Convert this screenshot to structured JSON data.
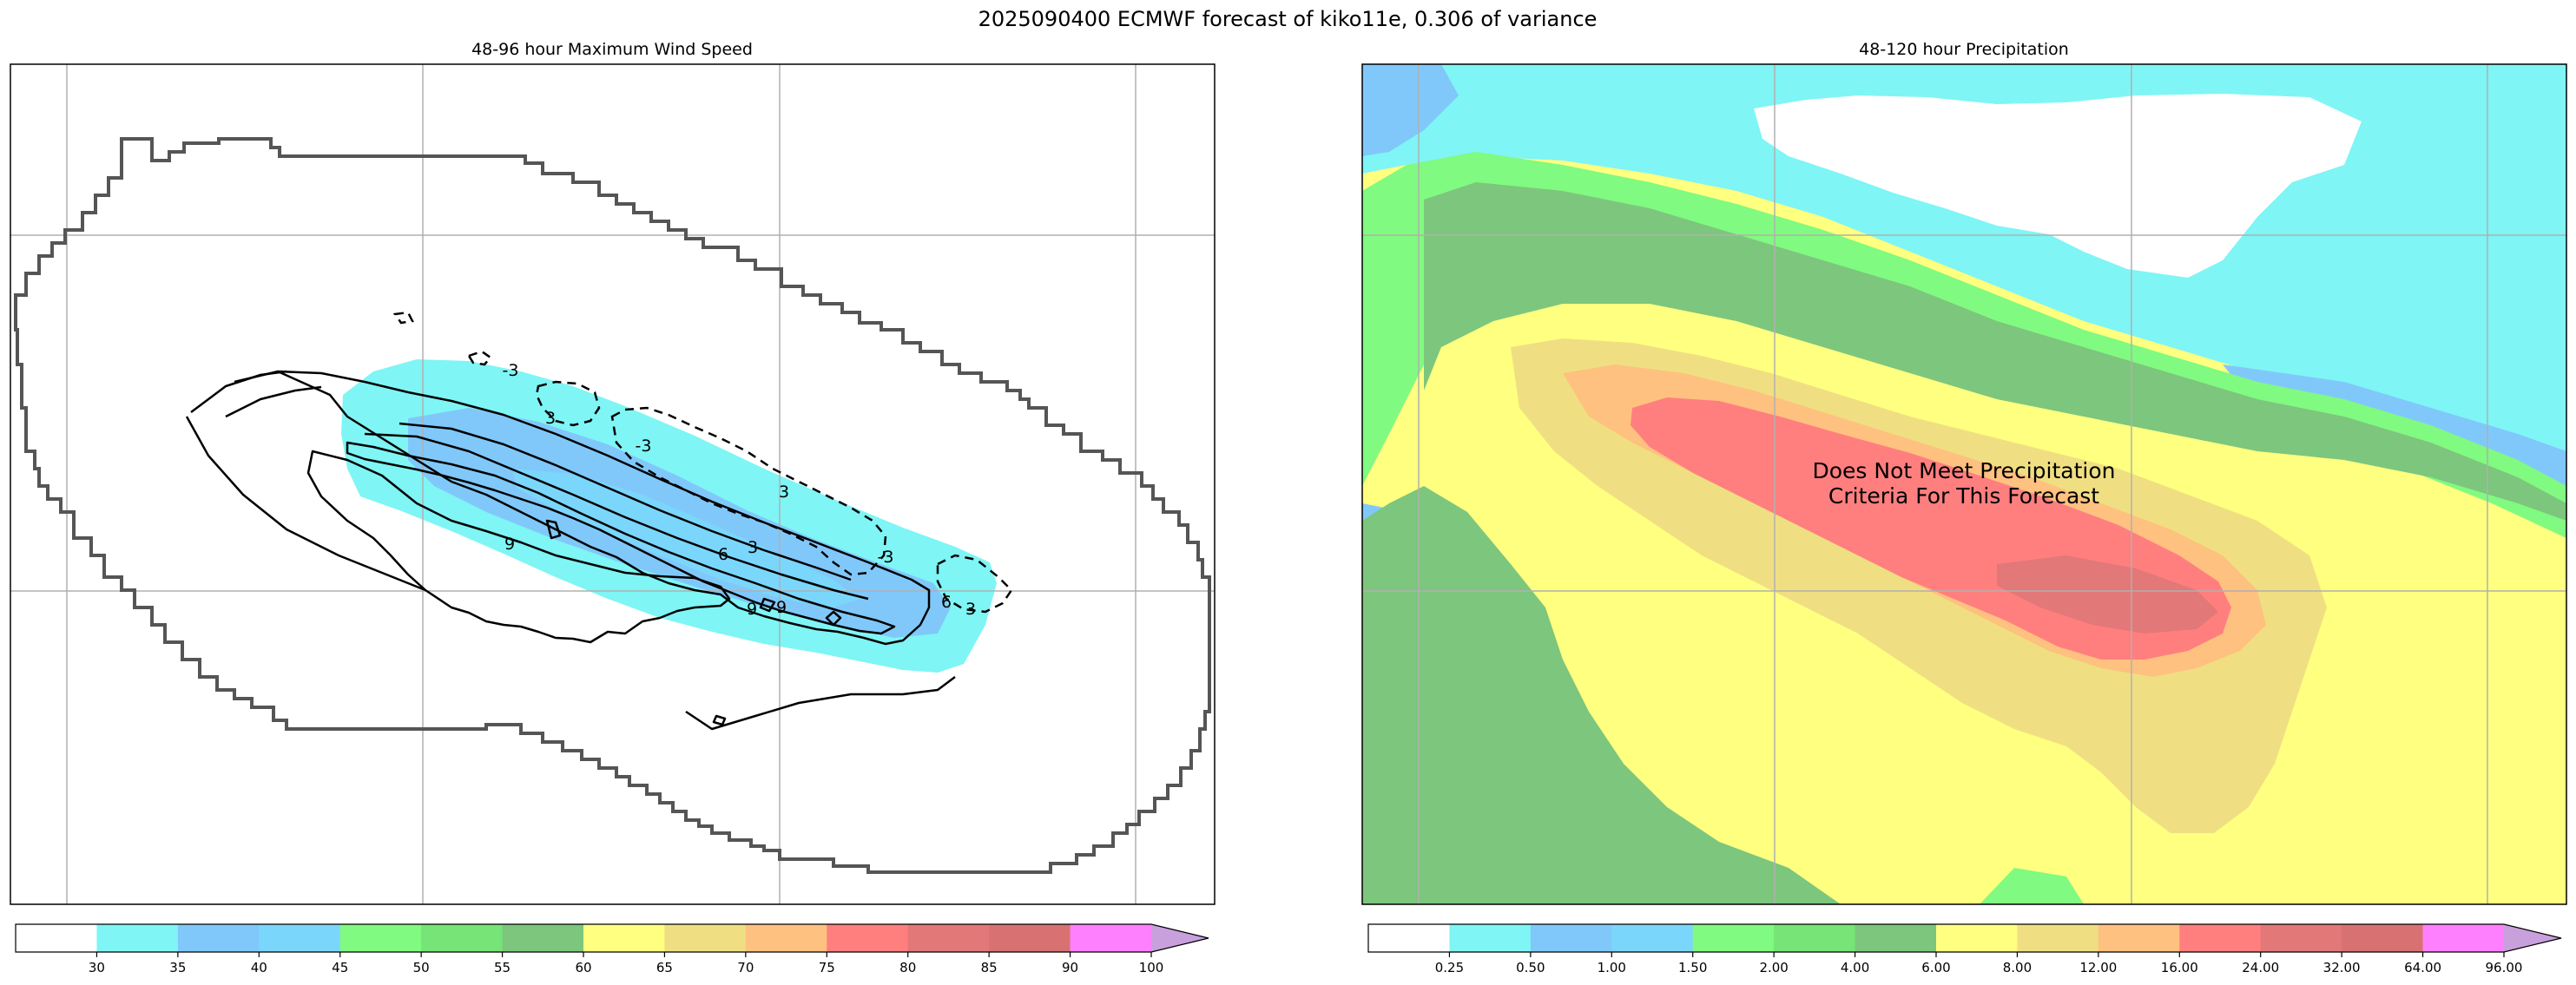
{
  "suptitle": "2025090400 ECMWF forecast of kiko11e, 0.306 of variance",
  "colors": {
    "frame": "#000000",
    "grid": "#b0b0b0",
    "outer_contour": "#555555",
    "contour": "#000000"
  },
  "chart_data": [
    {
      "type": "contour",
      "title": "48-96 hour Maximum Wind Speed",
      "xlabel": "",
      "ylabel": "",
      "grid": true,
      "filled_levels": [
        30,
        35,
        40
      ],
      "contour_labels": [
        "3",
        "3",
        "3",
        "3",
        "-3",
        "-3",
        "-3",
        "9",
        "9",
        "9",
        "6",
        "6"
      ],
      "colorbar": {
        "ticks": [
          "30",
          "35",
          "40",
          "45",
          "50",
          "55",
          "60",
          "65",
          "70",
          "75",
          "80",
          "85",
          "90",
          "100"
        ],
        "colors": [
          "#ffffff",
          "#7ff5f5",
          "#80c8fa",
          "#7bd6fc",
          "#80fa80",
          "#76e476",
          "#7dc67d",
          "#ffff80",
          "#efdf82",
          "#ffc17f",
          "#ff7f7f",
          "#e27878",
          "#d87272",
          "#ff80ff",
          "#c8a0dc"
        ],
        "extend": "max"
      }
    },
    {
      "type": "contour",
      "title": "48-120 hour Precipitation",
      "xlabel": "",
      "ylabel": "",
      "grid": true,
      "annotation": "Does Not Meet Precipitation\nCriteria For This Forecast",
      "colorbar": {
        "ticks": [
          "0.25",
          "0.50",
          "1.00",
          "1.50",
          "2.00",
          "4.00",
          "6.00",
          "8.00",
          "12.00",
          "16.00",
          "24.00",
          "32.00",
          "64.00",
          "96.00"
        ],
        "colors": [
          "#ffffff",
          "#7ff5f5",
          "#80c8fa",
          "#7bd6fc",
          "#80fa80",
          "#76e476",
          "#7dc67d",
          "#ffff80",
          "#efdf82",
          "#ffc17f",
          "#ff7f7f",
          "#e27878",
          "#d87272",
          "#ff80ff",
          "#c8a0dc"
        ],
        "extend": "max"
      }
    }
  ]
}
